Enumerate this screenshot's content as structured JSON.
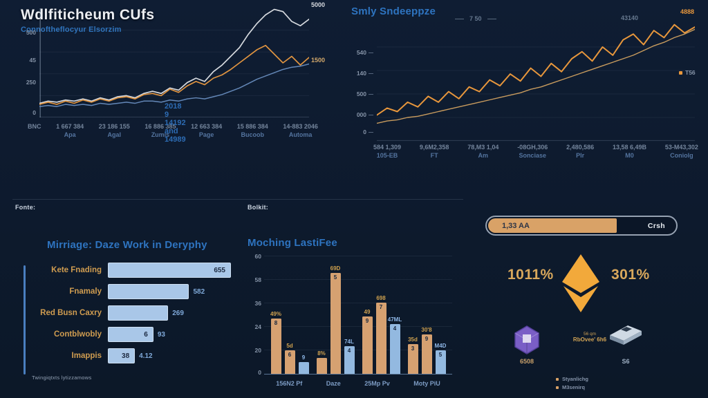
{
  "header": {
    "title": "Wdlfiticheum CUfs",
    "subtitle": "Connoftheflocyur Elsorzim"
  },
  "sections": {
    "left_label": "Fonte:",
    "mid_label": "Bolkit:"
  },
  "colors": {
    "background": "#0d1a2d",
    "accent_blue": "#2e74c0",
    "line_silver": "#d5d9de",
    "line_orange": "#e09440",
    "line_tan": "#c99c5e",
    "line_blue": "#6488b8",
    "bar_light_blue": "#a9c7e8",
    "bar_tan": "#d6a171",
    "bar_blue": "#93b9e0",
    "gold_text": "#d0a355",
    "eth_gold": "#f2a93b",
    "purple": "#7a5ec6"
  },
  "chart_data": [
    {
      "id": "price-history",
      "type": "line",
      "title": "",
      "ylabel_ticks": [
        "500",
        "45",
        "250",
        "0"
      ],
      "x_ticks": [
        {
          "value": "BNC",
          "name": ""
        },
        {
          "value": "1 667 384",
          "name": "Apa"
        },
        {
          "value": "23 186 155",
          "name": "Agal"
        },
        {
          "value": "16 886 385",
          "name": "Zumis"
        },
        {
          "value": "12 663 384",
          "name": "Page"
        },
        {
          "value": "15 886 384",
          "name": "Bucoob"
        },
        {
          "value": "14-883 2046",
          "name": "Automa"
        }
      ],
      "annotation": "2018 9 14192 and 14989",
      "end_labels": [
        {
          "text": "5000",
          "color": "#d5d9de"
        },
        {
          "text": "1500",
          "color": "#d3a86b"
        }
      ],
      "ylim": [
        0,
        5000
      ],
      "series": [
        {
          "name": "silver",
          "color": "#d5d9de",
          "width": 1.7,
          "values": [
            13,
            15,
            14,
            16,
            15,
            17,
            15,
            18,
            16,
            19,
            20,
            18,
            22,
            24,
            22,
            27,
            25,
            32,
            36,
            33,
            42,
            48,
            56,
            64,
            76,
            86,
            94,
            99,
            97,
            88,
            84,
            90
          ]
        },
        {
          "name": "orange",
          "color": "#e09440",
          "width": 1.7,
          "values": [
            12,
            14,
            12,
            15,
            13,
            16,
            14,
            17,
            15,
            18,
            19,
            17,
            21,
            22,
            20,
            26,
            23,
            29,
            33,
            30,
            36,
            39,
            44,
            50,
            56,
            62,
            66,
            58,
            50,
            56,
            48,
            55
          ]
        },
        {
          "name": "blue",
          "color": "#6488b8",
          "width": 1.5,
          "values": [
            10,
            11,
            10,
            12,
            11,
            12,
            11,
            13,
            12,
            13,
            14,
            13,
            15,
            15,
            14,
            16,
            15,
            17,
            18,
            17,
            19,
            21,
            24,
            27,
            31,
            35,
            38,
            41,
            44,
            46,
            47,
            49
          ]
        }
      ]
    },
    {
      "id": "daily-line",
      "type": "line",
      "title": "Smly Sndeeppze",
      "top_label": "7 50",
      "top_label_right": "43140",
      "end_label": "4888",
      "legend": [
        {
          "label": "T56",
          "color": "#e8973c"
        }
      ],
      "ylabel_ticks": [
        "540",
        "140",
        "500",
        "000",
        "0"
      ],
      "x_ticks": [
        {
          "value": "584 1,309",
          "name": "105-EB"
        },
        {
          "value": "9,6M2,358",
          "name": "FT"
        },
        {
          "value": "78,M3 1,04",
          "name": "Am"
        },
        {
          "value": "-08GH,306",
          "name": "Sonciase"
        },
        {
          "value": "2,480,586",
          "name": "Plr"
        },
        {
          "value": "13,58 6,49B",
          "name": "M0"
        },
        {
          "value": "53-M43,302",
          "name": "Coniolg"
        }
      ],
      "series": [
        {
          "name": "orange",
          "color": "#e8973c",
          "width": 2,
          "values": [
            22,
            28,
            25,
            33,
            29,
            38,
            33,
            42,
            36,
            46,
            42,
            52,
            47,
            57,
            51,
            62,
            55,
            66,
            59,
            70,
            76,
            68,
            80,
            73,
            86,
            91,
            82,
            94,
            88,
            99,
            92,
            97
          ]
        },
        {
          "name": "tan",
          "color": "#c99c5e",
          "width": 1.4,
          "values": [
            15,
            17,
            18,
            20,
            21,
            23,
            25,
            27,
            29,
            31,
            33,
            35,
            37,
            39,
            41,
            44,
            46,
            49,
            52,
            55,
            58,
            61,
            64,
            67,
            70,
            73,
            77,
            81,
            84,
            88,
            91,
            95
          ]
        }
      ]
    },
    {
      "id": "work-bars",
      "type": "bar",
      "orientation": "horizontal",
      "title": "Mirriage: Daze Work in Deryphy",
      "footnote": "Twingiqtxts lytizzamows",
      "bars": [
        {
          "label": "Kete Fnading",
          "inner": "655",
          "outer": "",
          "pct": 100
        },
        {
          "label": "Fnamaly",
          "inner": "",
          "outer": "582",
          "pct": 66
        },
        {
          "label": "Red Busn Caxry",
          "inner": "",
          "outer": "269",
          "pct": 49
        },
        {
          "label": "Contblwobly",
          "inner": "6",
          "outer": "93",
          "pct": 37
        },
        {
          "label": "Imappis",
          "inner": "38",
          "outer": "4.12",
          "pct": 22
        }
      ]
    },
    {
      "id": "moching-bars",
      "type": "bar",
      "orientation": "grouped-vertical",
      "title": "Moching LastiFee",
      "ylim": [
        0,
        60
      ],
      "ylabel_ticks": [
        "60",
        "58",
        "36",
        "24",
        "20",
        "0"
      ],
      "groups": [
        {
          "label": "156N2 Pf",
          "bars": [
            {
              "v": 28,
              "t": "49%",
              "in": "8",
              "c": "tan"
            },
            {
              "v": 12,
              "t": "5d",
              "in": "6",
              "c": "tan"
            },
            {
              "v": 6,
              "t": "9",
              "in": "",
              "c": "blue"
            }
          ]
        },
        {
          "label": "Daze",
          "bars": [
            {
              "v": 8,
              "t": "8%",
              "in": "0",
              "c": "tan"
            },
            {
              "v": 51,
              "t": "69D",
              "in": "5",
              "c": "tan"
            },
            {
              "v": 14,
              "t": "74L",
              "in": "4",
              "c": "blue"
            }
          ]
        },
        {
          "label": "25Mp Pv",
          "bars": [
            {
              "v": 29,
              "t": "49",
              "in": "9",
              "c": "tan"
            },
            {
              "v": 36,
              "t": "698",
              "in": "7",
              "c": "tan"
            },
            {
              "v": 25,
              "t": "47ML",
              "in": "4",
              "c": "blue"
            }
          ]
        },
        {
          "label": "Moty PiU",
          "bars": [
            {
              "v": 15,
              "t": "35d",
              "in": "3",
              "c": "tan"
            },
            {
              "v": 20,
              "t": "30'8",
              "in": "9",
              "c": "tan"
            },
            {
              "v": 12,
              "t": "M4D",
              "in": "5",
              "c": "blue"
            }
          ]
        }
      ]
    }
  ],
  "right_panel": {
    "progress": {
      "label": "1,33 AA",
      "button": "Crsh",
      "pct": 68
    },
    "stat_left": "1011%",
    "stat_right": "301%",
    "cube_label": "6508",
    "card_label": "S6",
    "note_line1": "56 qm",
    "note_line2": "RbOvee' 6h6",
    "legend": [
      {
        "label": "Styanlichg",
        "color": "#d9a267"
      },
      {
        "label": "M3senirq",
        "color": "#d9a267"
      }
    ]
  }
}
